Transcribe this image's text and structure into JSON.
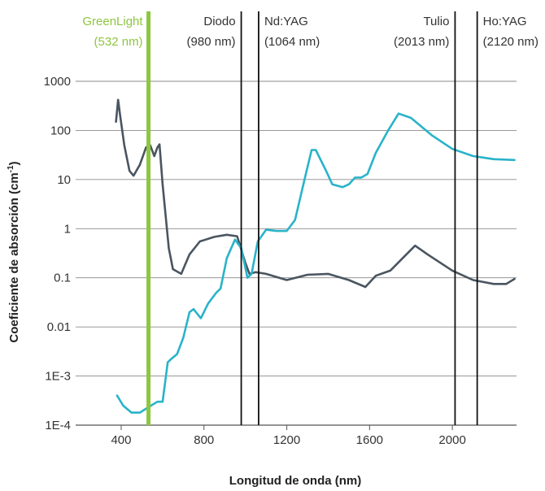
{
  "chart_data": {
    "type": "line",
    "xlabel": "Longitud de onda (nm)",
    "ylabel": "Coeficiente de absorción (cm",
    "ylabel_sup": "-1",
    "ylabel_close": ")",
    "y_scale": "log",
    "xlim": [
      180,
      2310
    ],
    "ylim": [
      0.0001,
      1000
    ],
    "grid": "horizontal",
    "x_ticks": [
      {
        "value": 400,
        "label": "400"
      },
      {
        "value": 800,
        "label": "800"
      },
      {
        "value": 1200,
        "label": "1200"
      },
      {
        "value": 1600,
        "label": "1600"
      },
      {
        "value": 2000,
        "label": "2000"
      }
    ],
    "y_ticks": [
      {
        "value": 1000,
        "label": "1000"
      },
      {
        "value": 100,
        "label": "100"
      },
      {
        "value": 10,
        "label": "10"
      },
      {
        "value": 1,
        "label": "1"
      },
      {
        "value": 0.1,
        "label": "0.1"
      },
      {
        "value": 0.01,
        "label": "0.01"
      },
      {
        "value": 0.001,
        "label": "1E-3"
      },
      {
        "value": 0.0001,
        "label": "1E-4"
      }
    ],
    "lasers": [
      {
        "name": "GreenLight",
        "wavelength_label": "(532 nm)",
        "x": 532,
        "color": "#8dc63f",
        "bold": true,
        "align": "end"
      },
      {
        "name": "Diodo",
        "wavelength_label": "(980 nm)",
        "x": 980,
        "color": "#111111",
        "bold": false,
        "align": "end"
      },
      {
        "name": "Nd:YAG",
        "wavelength_label": "(1064 nm)",
        "x": 1064,
        "color": "#111111",
        "bold": false,
        "align": "start"
      },
      {
        "name": "Tulio",
        "wavelength_label": "(2013 nm)",
        "x": 2013,
        "color": "#111111",
        "bold": false,
        "align": "end"
      },
      {
        "name": "Ho:YAG",
        "wavelength_label": "(2120 nm)",
        "x": 2120,
        "color": "#111111",
        "bold": false,
        "align": "start"
      }
    ],
    "series": [
      {
        "color": "#4a5560",
        "points": [
          [
            375,
            150
          ],
          [
            385,
            420
          ],
          [
            395,
            200
          ],
          [
            415,
            50
          ],
          [
            440,
            15
          ],
          [
            460,
            12
          ],
          [
            490,
            20
          ],
          [
            520,
            45
          ],
          [
            540,
            50
          ],
          [
            560,
            30
          ],
          [
            575,
            45
          ],
          [
            585,
            52
          ],
          [
            600,
            8
          ],
          [
            630,
            0.4
          ],
          [
            650,
            0.15
          ],
          [
            690,
            0.12
          ],
          [
            730,
            0.3
          ],
          [
            780,
            0.55
          ],
          [
            850,
            0.68
          ],
          [
            910,
            0.75
          ],
          [
            960,
            0.7
          ],
          [
            1000,
            0.2
          ],
          [
            1020,
            0.12
          ],
          [
            1050,
            0.13
          ],
          [
            1100,
            0.12
          ],
          [
            1200,
            0.09
          ],
          [
            1300,
            0.115
          ],
          [
            1400,
            0.12
          ],
          [
            1500,
            0.09
          ],
          [
            1580,
            0.065
          ],
          [
            1630,
            0.11
          ],
          [
            1700,
            0.14
          ],
          [
            1820,
            0.45
          ],
          [
            1880,
            0.3
          ],
          [
            2000,
            0.14
          ],
          [
            2100,
            0.09
          ],
          [
            2200,
            0.075
          ],
          [
            2260,
            0.075
          ],
          [
            2300,
            0.095
          ]
        ]
      },
      {
        "color": "#29b3c9",
        "points": [
          [
            380,
            0.0004
          ],
          [
            410,
            0.00025
          ],
          [
            450,
            0.00018
          ],
          [
            490,
            0.00018
          ],
          [
            530,
            0.00023
          ],
          [
            575,
            0.0003
          ],
          [
            600,
            0.0003
          ],
          [
            625,
            0.0019
          ],
          [
            640,
            0.0022
          ],
          [
            670,
            0.0028
          ],
          [
            700,
            0.006
          ],
          [
            730,
            0.02
          ],
          [
            750,
            0.023
          ],
          [
            785,
            0.015
          ],
          [
            820,
            0.03
          ],
          [
            860,
            0.05
          ],
          [
            880,
            0.06
          ],
          [
            910,
            0.25
          ],
          [
            950,
            0.6
          ],
          [
            980,
            0.4
          ],
          [
            1010,
            0.1
          ],
          [
            1030,
            0.12
          ],
          [
            1060,
            0.55
          ],
          [
            1100,
            0.95
          ],
          [
            1150,
            0.9
          ],
          [
            1200,
            0.9
          ],
          [
            1240,
            1.5
          ],
          [
            1290,
            12
          ],
          [
            1320,
            40
          ],
          [
            1340,
            40
          ],
          [
            1390,
            15
          ],
          [
            1420,
            8
          ],
          [
            1470,
            7
          ],
          [
            1500,
            8
          ],
          [
            1530,
            11
          ],
          [
            1560,
            11
          ],
          [
            1590,
            13
          ],
          [
            1630,
            35
          ],
          [
            1690,
            100
          ],
          [
            1740,
            220
          ],
          [
            1800,
            180
          ],
          [
            1900,
            80
          ],
          [
            2000,
            42
          ],
          [
            2100,
            30
          ],
          [
            2200,
            26
          ],
          [
            2300,
            25
          ]
        ]
      }
    ]
  }
}
